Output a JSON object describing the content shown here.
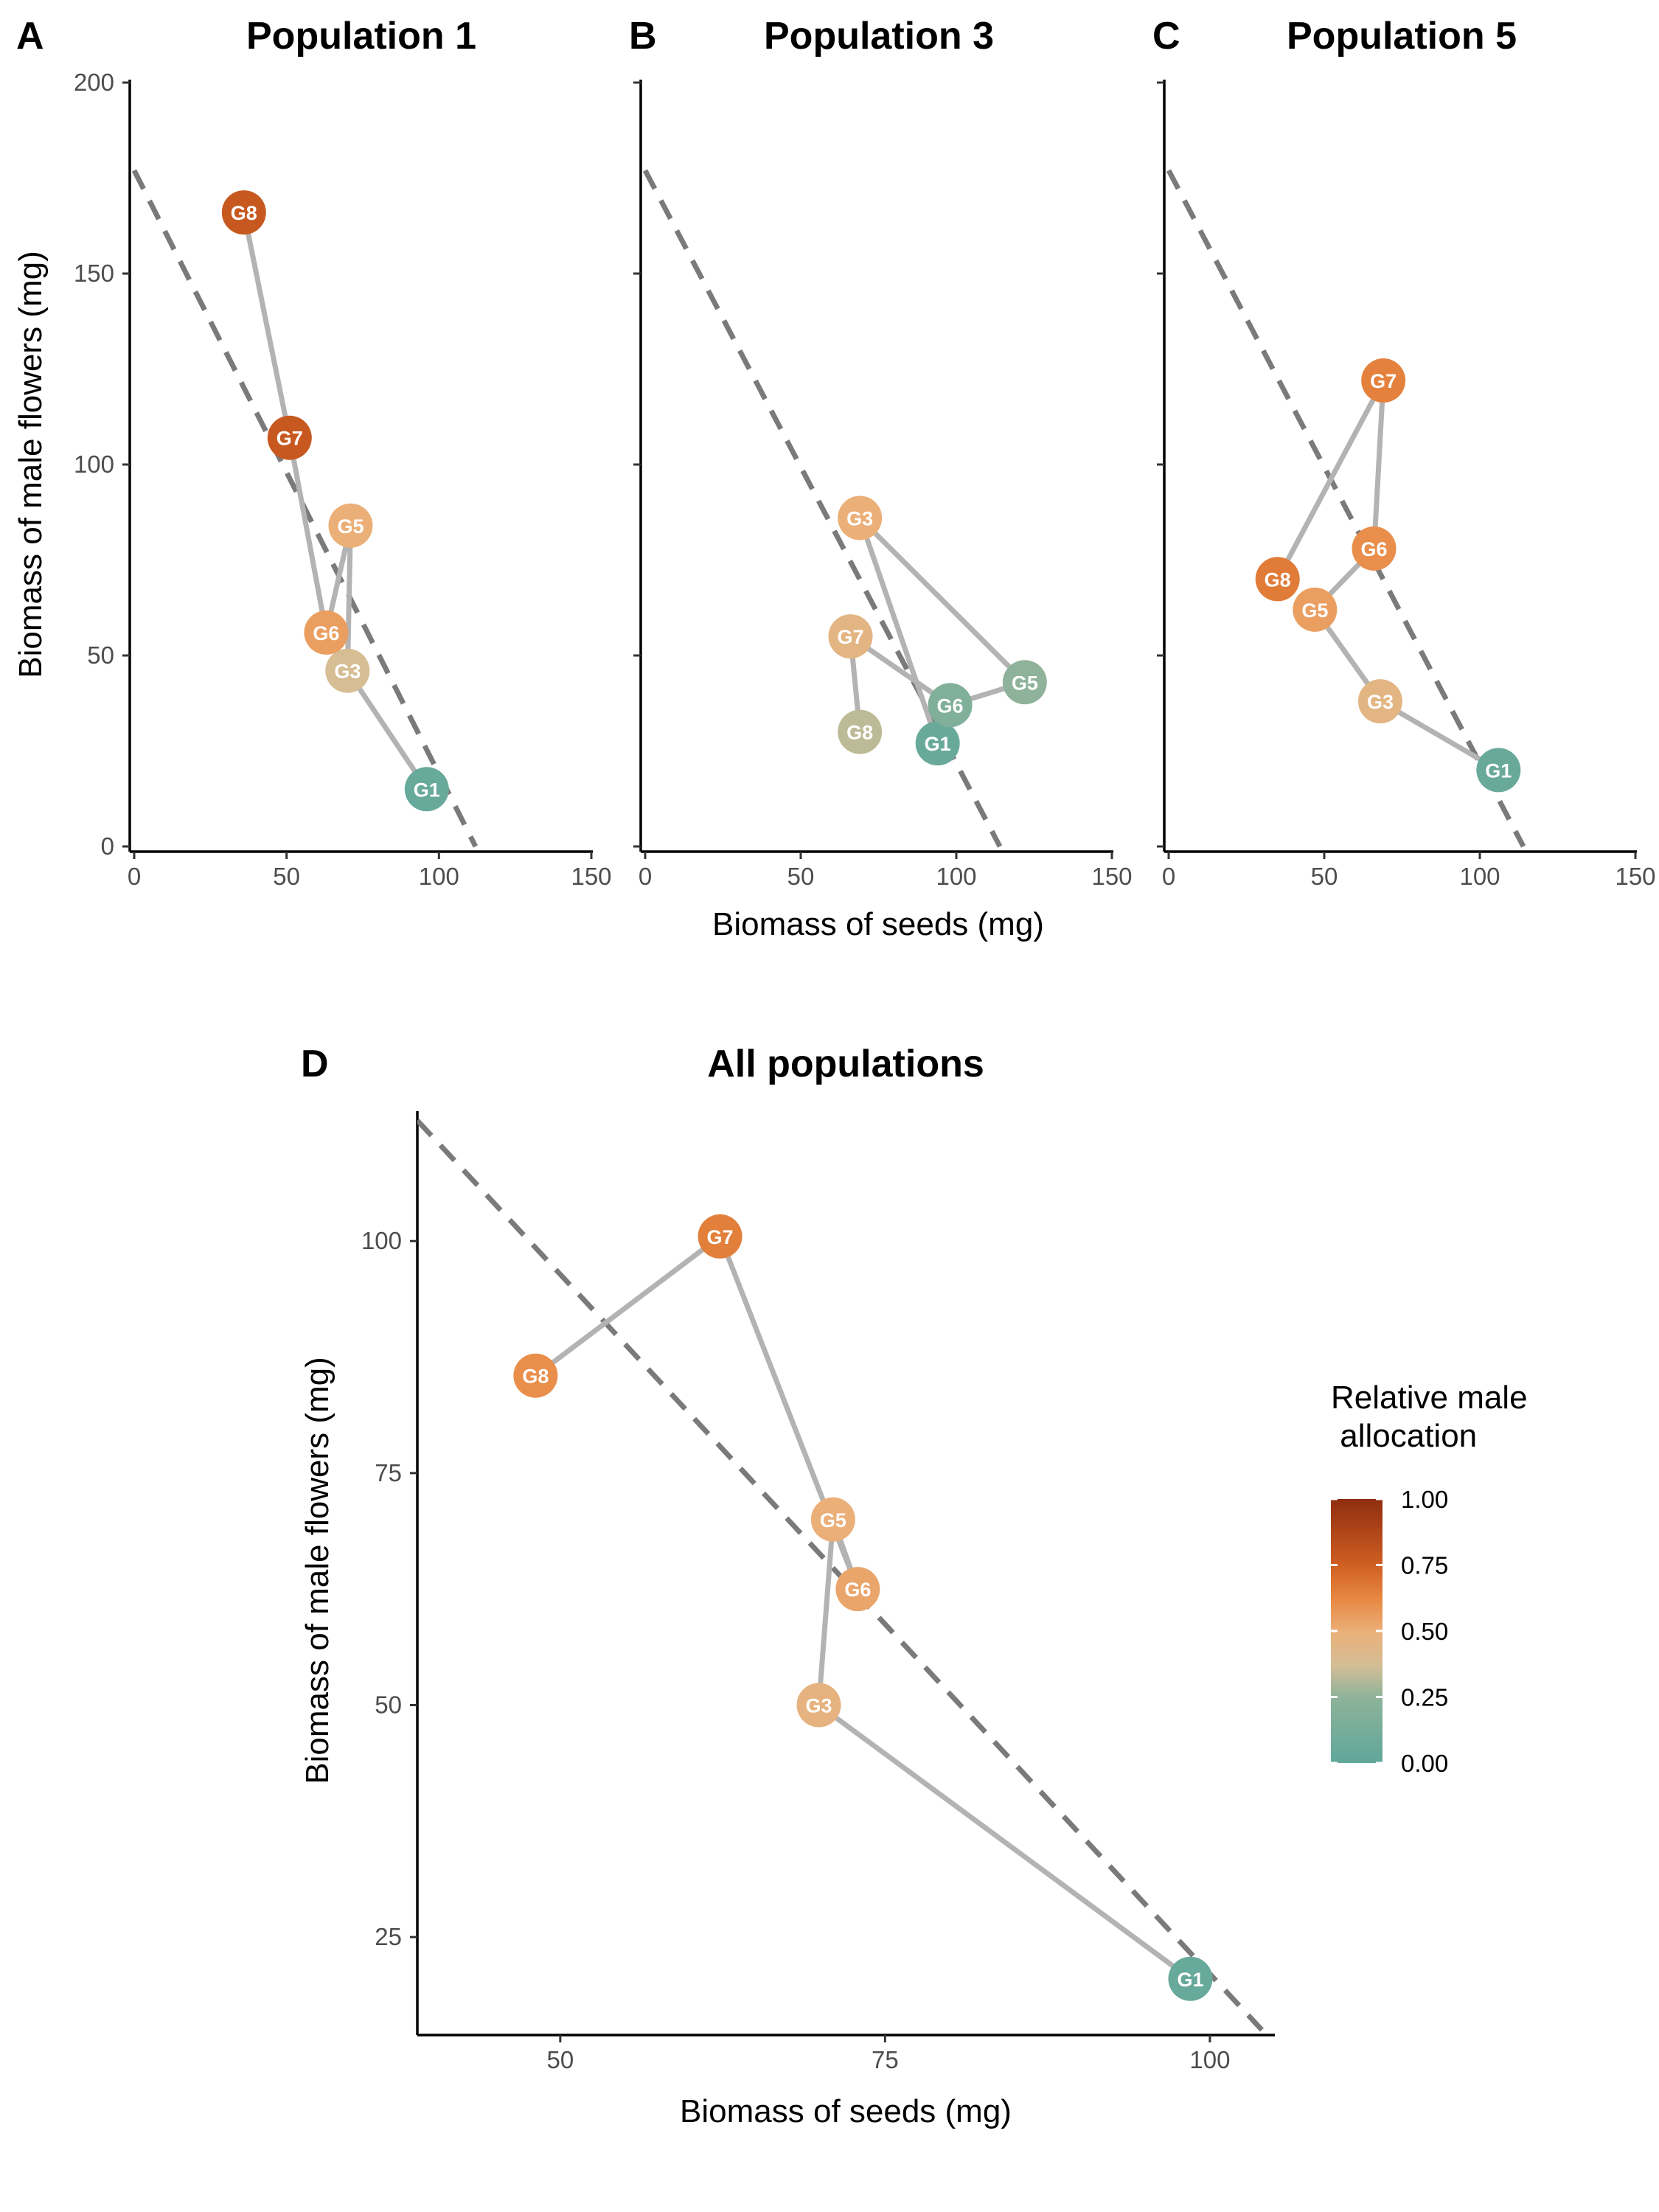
{
  "colors": {
    "path_line": "#b3b3b3",
    "dashed_line": "#7a7a7a",
    "axis": "#000000",
    "gradient_stops": [
      {
        "value": 0.0,
        "color": "#5fa79a"
      },
      {
        "value": 0.25,
        "color": "#8fb39a"
      },
      {
        "value": 0.37,
        "color": "#d4be95"
      },
      {
        "value": 0.5,
        "color": "#ebaf78"
      },
      {
        "value": 0.62,
        "color": "#e88842"
      },
      {
        "value": 0.75,
        "color": "#cf5f22"
      },
      {
        "value": 1.0,
        "color": "#8f2d10"
      }
    ]
  },
  "legend": {
    "title_line1": "Relative male",
    "title_line2": " allocation",
    "ticks": [
      "1.00",
      "0.75",
      "0.50",
      "0.25",
      "0.00"
    ],
    "range": [
      0,
      1
    ]
  },
  "shared_axes": {
    "ylabel_top": "Biomass of male flowers (mg)",
    "xlabel_top": "Biomass of seeds (mg)"
  },
  "chart_data": [
    {
      "type": "scatter",
      "tag": "A",
      "title": "Population 1",
      "xlim": [
        0,
        150
      ],
      "ylim": [
        0,
        200
      ],
      "xticks": [
        0,
        50,
        100,
        150
      ],
      "yticks": [
        0,
        50,
        100,
        150,
        200
      ],
      "xtick_labels": [
        "0",
        "50",
        "100",
        "150"
      ],
      "ytick_labels": [
        "0",
        "50",
        "100",
        "150",
        "200"
      ],
      "reference_line": {
        "x": [
          0,
          112
        ],
        "y": [
          177,
          0
        ]
      },
      "path": [
        "G1",
        "G3",
        "G5",
        "G6",
        "G7",
        "G8"
      ],
      "points": [
        {
          "label": "G1",
          "x": 96,
          "y": 15,
          "allocation": 0.04
        },
        {
          "label": "G3",
          "x": 70,
          "y": 46,
          "allocation": 0.38
        },
        {
          "label": "G5",
          "x": 71,
          "y": 84,
          "allocation": 0.5
        },
        {
          "label": "G6",
          "x": 63,
          "y": 56,
          "allocation": 0.55
        },
        {
          "label": "G7",
          "x": 51,
          "y": 107,
          "allocation": 0.78
        },
        {
          "label": "G8",
          "x": 36,
          "y": 166,
          "allocation": 0.78
        }
      ]
    },
    {
      "type": "scatter",
      "tag": "B",
      "title": "Population 3",
      "xlim": [
        0,
        150
      ],
      "ylim": [
        0,
        200
      ],
      "xticks": [
        0,
        50,
        100,
        150
      ],
      "yticks": [
        0,
        50,
        100,
        150,
        200
      ],
      "xtick_labels": [
        "0",
        "50",
        "100",
        "150"
      ],
      "reference_line": {
        "x": [
          0,
          114
        ],
        "y": [
          177,
          0
        ]
      },
      "path": [
        "G1",
        "G3",
        "G5",
        "G6",
        "G7",
        "G8"
      ],
      "points": [
        {
          "label": "G1",
          "x": 94,
          "y": 27,
          "allocation": 0.05
        },
        {
          "label": "G3",
          "x": 69,
          "y": 86,
          "allocation": 0.5
        },
        {
          "label": "G5",
          "x": 122,
          "y": 43,
          "allocation": 0.25
        },
        {
          "label": "G6",
          "x": 98,
          "y": 37,
          "allocation": 0.17
        },
        {
          "label": "G7",
          "x": 66,
          "y": 55,
          "allocation": 0.45
        },
        {
          "label": "G8",
          "x": 69,
          "y": 30,
          "allocation": 0.33
        }
      ]
    },
    {
      "type": "scatter",
      "tag": "C",
      "title": "Population 5",
      "xlim": [
        0,
        150
      ],
      "ylim": [
        0,
        200
      ],
      "xticks": [
        0,
        50,
        100,
        150
      ],
      "yticks": [
        0,
        50,
        100,
        150,
        200
      ],
      "xtick_labels": [
        "0",
        "50",
        "100",
        "150"
      ],
      "reference_line": {
        "x": [
          0,
          114
        ],
        "y": [
          177,
          0
        ]
      },
      "path": [
        "G1",
        "G3",
        "G5",
        "G6",
        "G7",
        "G8"
      ],
      "points": [
        {
          "label": "G1",
          "x": 106,
          "y": 20,
          "allocation": 0.05
        },
        {
          "label": "G3",
          "x": 68,
          "y": 38,
          "allocation": 0.45
        },
        {
          "label": "G5",
          "x": 47,
          "y": 62,
          "allocation": 0.55
        },
        {
          "label": "G6",
          "x": 66,
          "y": 78,
          "allocation": 0.6
        },
        {
          "label": "G7",
          "x": 69,
          "y": 122,
          "allocation": 0.64
        },
        {
          "label": "G8",
          "x": 35,
          "y": 70,
          "allocation": 0.66
        }
      ]
    },
    {
      "type": "scatter",
      "tag": "D",
      "title": "All populations",
      "xlabel": "Biomass of seeds (mg)",
      "ylabel": "Biomass of male flowers (mg)",
      "xlim": [
        39,
        105
      ],
      "ylim": [
        15,
        114
      ],
      "xticks": [
        50,
        75,
        100
      ],
      "yticks": [
        25,
        50,
        75,
        100
      ],
      "xtick_labels": [
        "50",
        "75",
        "100"
      ],
      "ytick_labels": [
        "25",
        "50",
        "75",
        "100"
      ],
      "reference_line": {
        "x": [
          39,
          104
        ],
        "y": [
          113,
          15
        ]
      },
      "path": [
        "G1",
        "G3",
        "G5",
        "G6",
        "G7",
        "G8"
      ],
      "points": [
        {
          "label": "G1",
          "x": 98.5,
          "y": 20.5,
          "allocation": 0.04
        },
        {
          "label": "G3",
          "x": 69.9,
          "y": 50,
          "allocation": 0.47
        },
        {
          "label": "G5",
          "x": 71,
          "y": 70,
          "allocation": 0.5
        },
        {
          "label": "G6",
          "x": 72.9,
          "y": 62.5,
          "allocation": 0.53
        },
        {
          "label": "G7",
          "x": 62.3,
          "y": 100.5,
          "allocation": 0.65
        },
        {
          "label": "G8",
          "x": 48.1,
          "y": 85.5,
          "allocation": 0.6
        }
      ]
    }
  ]
}
